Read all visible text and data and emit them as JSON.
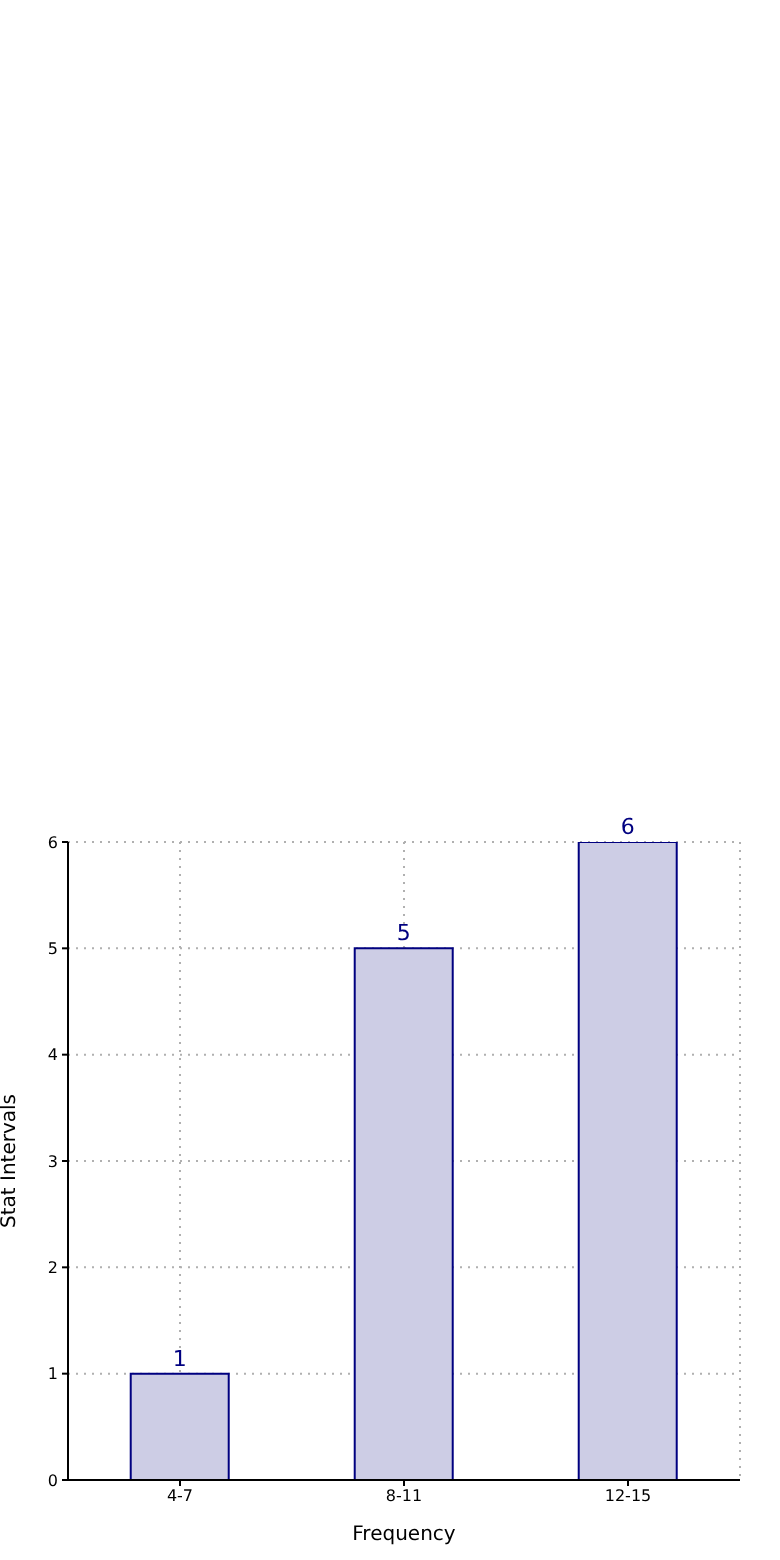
{
  "chart_data": {
    "type": "bar",
    "xlabel": "Frequency",
    "ylabel": "Stat Intervals",
    "categories": [
      "4-7",
      "8-11",
      "12-15"
    ],
    "series": [
      {
        "color": "#cdcde5",
        "values": [
          1,
          5,
          6
        ]
      }
    ],
    "ylim": [
      0,
      6
    ],
    "yticks": [
      0,
      1,
      2,
      3,
      4,
      5,
      6
    ],
    "grid": true,
    "data_labels": true
  }
}
